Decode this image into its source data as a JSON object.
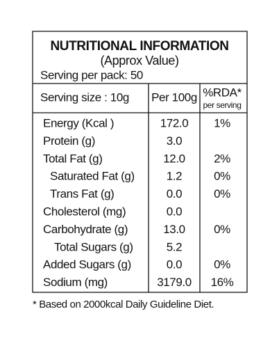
{
  "header": {
    "title": "NUTRITIONAL INFORMATION",
    "subtitle": "(Approx Value)",
    "serving_per_pack": "Serving per pack: 50"
  },
  "table": {
    "header": {
      "serving_size": "Serving size : 10g",
      "per": "Per 100g",
      "rda": "%RDA*",
      "rda_sub": "per serving"
    },
    "rows": [
      [
        "Energy (Kcal )",
        "172.0",
        "1%"
      ],
      [
        "Protein (g)",
        "3.0",
        null
      ],
      [
        "Total Fat (g)",
        "12.0",
        "2%"
      ],
      [
        "Saturated Fat (g)",
        "1.2",
        "0%"
      ],
      [
        "Trans Fat (g)",
        "0.0",
        "0%"
      ],
      [
        "Cholesterol (mg)",
        "0.0",
        null
      ],
      [
        "Carbohydrate (g)",
        "13.0",
        "0%"
      ],
      [
        "Total Sugars (g)",
        "5.2",
        null
      ],
      [
        "Added Sugars (g)",
        "0.0",
        "0%"
      ],
      [
        "Sodium (mg)",
        "3179.0",
        "16%"
      ]
    ]
  },
  "footnote": "* Based on 2000kcal Daily Guideline Diet."
}
